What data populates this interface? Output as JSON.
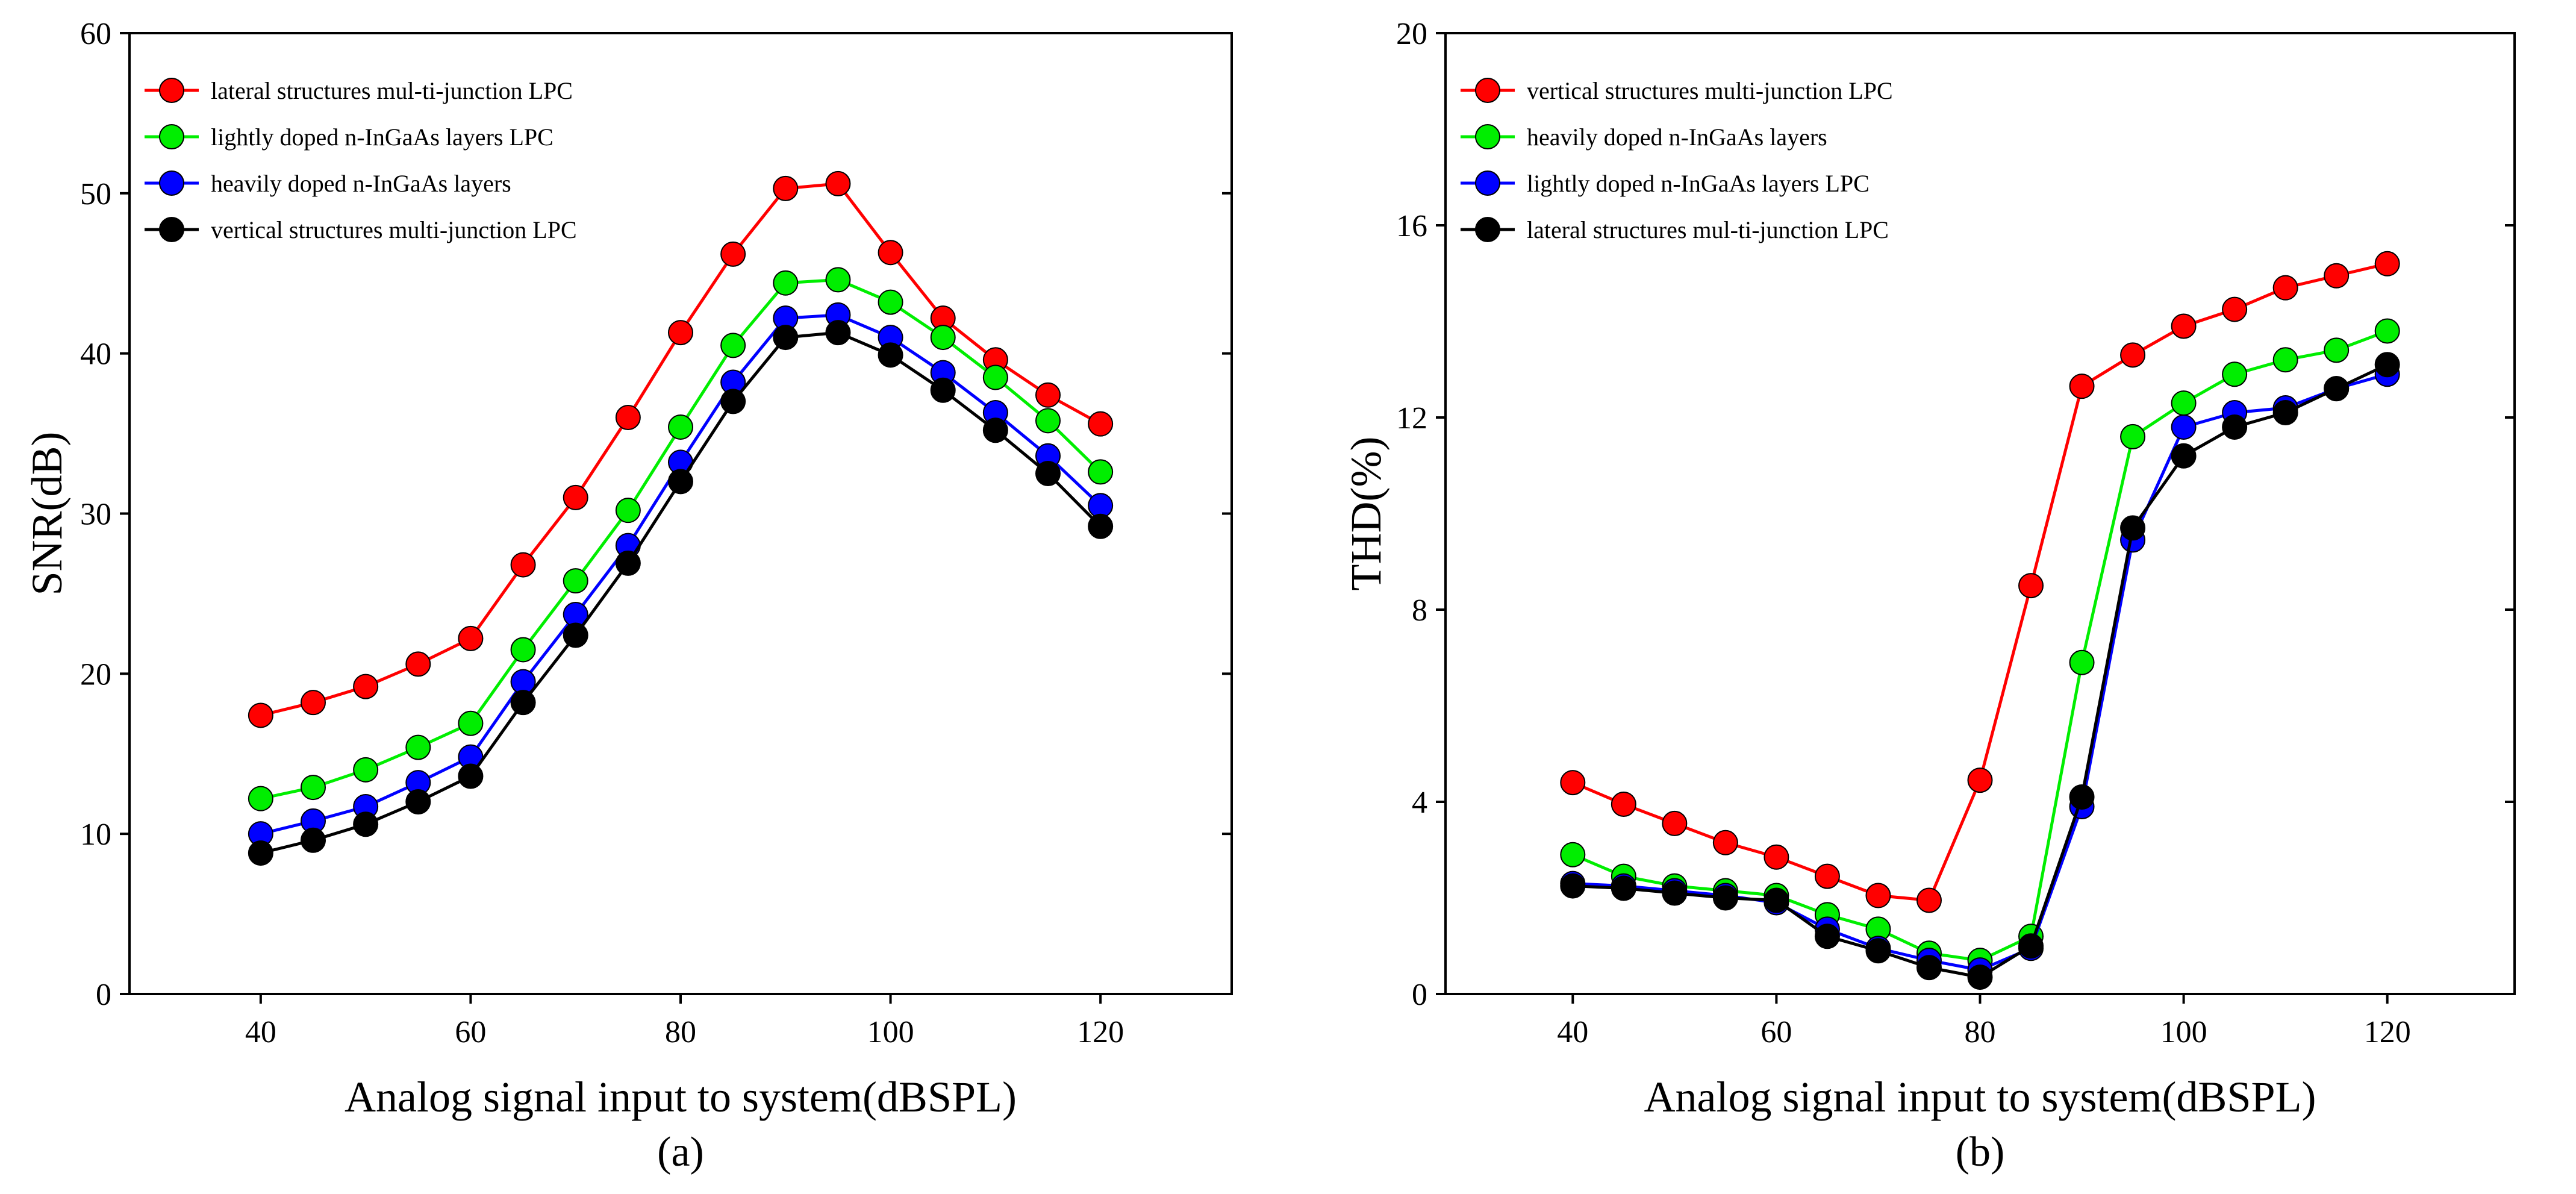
{
  "chart_data": [
    {
      "type": "line",
      "panel_label": "(a)",
      "xlabel": "Analog signal input to system(dBSPL)",
      "ylabel": "SNR(dB)",
      "xlim": [
        27.5,
        132.5
      ],
      "ylim": [
        0,
        60
      ],
      "xticks": [
        40,
        60,
        80,
        100,
        120
      ],
      "yticks": [
        0,
        10,
        20,
        30,
        40,
        50,
        60
      ],
      "grid": false,
      "legend_position": "top-left",
      "x": [
        40,
        45,
        50,
        55,
        60,
        65,
        70,
        75,
        80,
        85,
        90,
        95,
        100,
        105,
        110,
        115,
        120
      ],
      "series": [
        {
          "name": "lateral structures mul-ti-junction LPC",
          "color": "#ff0000",
          "values": [
            17.4,
            18.2,
            19.2,
            20.6,
            22.2,
            26.8,
            31.0,
            36.0,
            41.3,
            46.2,
            50.3,
            50.6,
            46.3,
            42.2,
            39.6,
            37.4,
            35.6
          ]
        },
        {
          "name": "lightly doped n-InGaAs layers LPC",
          "color": "#00ee00",
          "values": [
            12.2,
            12.9,
            14.0,
            15.4,
            16.9,
            21.5,
            25.8,
            30.2,
            35.4,
            40.5,
            44.4,
            44.6,
            43.2,
            41.0,
            38.5,
            35.8,
            32.6
          ]
        },
        {
          "name": "heavily doped n-InGaAs layers",
          "color": "#0000ff",
          "values": [
            10.0,
            10.8,
            11.7,
            13.2,
            14.8,
            19.5,
            23.7,
            28.0,
            33.2,
            38.2,
            42.2,
            42.4,
            41.0,
            38.8,
            36.3,
            33.6,
            30.5
          ]
        },
        {
          "name": "vertical structures multi-junction LPC",
          "color": "#000000",
          "values": [
            8.8,
            9.6,
            10.6,
            12.0,
            13.6,
            18.2,
            22.4,
            26.9,
            32.0,
            37.0,
            41.0,
            41.3,
            39.9,
            37.7,
            35.2,
            32.5,
            29.2
          ]
        }
      ]
    },
    {
      "type": "line",
      "panel_label": "(b)",
      "xlabel": "Analog signal input to system(dBSPL)",
      "ylabel": "THD(%)",
      "xlim": [
        27.5,
        132.5
      ],
      "ylim": [
        0,
        20
      ],
      "xticks": [
        40,
        60,
        80,
        100,
        120
      ],
      "yticks": [
        0,
        4,
        8,
        12,
        16,
        20
      ],
      "grid": false,
      "legend_position": "top-left",
      "x": [
        40,
        45,
        50,
        55,
        60,
        65,
        70,
        75,
        80,
        85,
        90,
        95,
        100,
        105,
        110,
        115,
        120
      ],
      "series": [
        {
          "name": "vertical structures multi-junction LPC",
          "color": "#ff0000",
          "values": [
            4.4,
            3.95,
            3.55,
            3.15,
            2.85,
            2.45,
            2.05,
            1.95,
            4.45,
            8.5,
            12.65,
            13.3,
            13.9,
            14.25,
            14.7,
            14.95,
            15.2
          ]
        },
        {
          "name": "heavily doped n-InGaAs layers",
          "color": "#00ee00",
          "values": [
            2.9,
            2.45,
            2.25,
            2.15,
            2.05,
            1.65,
            1.35,
            0.85,
            0.7,
            1.2,
            6.9,
            11.6,
            12.3,
            12.9,
            13.2,
            13.4,
            13.8
          ]
        },
        {
          "name": "lightly doped n-InGaAs layers LPC",
          "color": "#0000ff",
          "values": [
            2.3,
            2.25,
            2.15,
            2.05,
            1.9,
            1.35,
            0.95,
            0.7,
            0.5,
            0.95,
            3.9,
            9.45,
            11.8,
            12.1,
            12.2,
            12.6,
            12.9
          ]
        },
        {
          "name": "lateral structures mul-ti-junction LPC",
          "color": "#000000",
          "values": [
            2.25,
            2.2,
            2.1,
            2.0,
            1.95,
            1.2,
            0.9,
            0.55,
            0.35,
            1.0,
            4.1,
            9.7,
            11.2,
            11.8,
            12.1,
            12.6,
            13.1
          ]
        }
      ]
    }
  ]
}
